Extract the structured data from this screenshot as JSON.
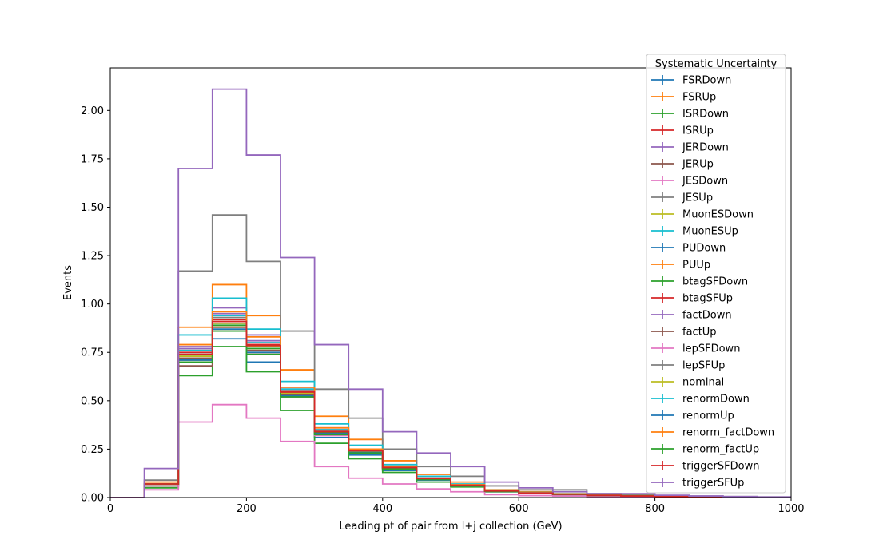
{
  "chart_data": {
    "type": "step-histogram",
    "xlabel": "Leading pt of pair from l+j collection (GeV)",
    "ylabel": "Events",
    "xlim": [
      0,
      1000
    ],
    "ylim": [
      0,
      2.22
    ],
    "x_ticks": [
      "0",
      "200",
      "400",
      "600",
      "800",
      "1000"
    ],
    "y_ticks": [
      "0.00",
      "0.25",
      "0.50",
      "0.75",
      "1.00",
      "1.25",
      "1.50",
      "1.75",
      "2.00"
    ],
    "x_tick_values": [
      0,
      200,
      400,
      600,
      800,
      1000
    ],
    "y_tick_values": [
      0,
      0.25,
      0.5,
      0.75,
      1.0,
      1.25,
      1.5,
      1.75,
      2.0
    ],
    "legend_title": "Systematic Uncertainty",
    "legend_position": "top-right",
    "bin_edges": [
      0,
      50,
      100,
      150,
      200,
      250,
      300,
      350,
      400,
      450,
      500,
      550,
      600,
      650,
      700,
      750,
      800,
      850,
      900,
      950,
      1000
    ],
    "series": [
      {
        "name": "FSRDown",
        "color": "#1f77b4",
        "values": [
          0,
          0.06,
          0.7,
          0.82,
          0.7,
          0.52,
          0.31,
          0.22,
          0.14,
          0.09,
          0.06,
          0.03,
          0.02,
          0.015,
          0.01,
          0.008,
          0.005,
          0.004,
          0.003,
          0.002
        ]
      },
      {
        "name": "FSRUp",
        "color": "#ff7f0e",
        "values": [
          0,
          0.08,
          0.88,
          1.1,
          0.94,
          0.66,
          0.42,
          0.3,
          0.19,
          0.12,
          0.08,
          0.04,
          0.03,
          0.02,
          0.015,
          0.01,
          0.007,
          0.005,
          0.003,
          0.002
        ]
      },
      {
        "name": "ISRDown",
        "color": "#2ca02c",
        "values": [
          0,
          0.05,
          0.63,
          0.78,
          0.65,
          0.45,
          0.28,
          0.2,
          0.13,
          0.08,
          0.055,
          0.03,
          0.02,
          0.015,
          0.01,
          0.007,
          0.005,
          0.003,
          0.002,
          0.001
        ]
      },
      {
        "name": "ISRUp",
        "color": "#d62728",
        "values": [
          0,
          0.07,
          0.76,
          0.92,
          0.79,
          0.55,
          0.34,
          0.24,
          0.16,
          0.1,
          0.065,
          0.035,
          0.025,
          0.018,
          0.012,
          0.009,
          0.006,
          0.004,
          0.003,
          0.002
        ]
      },
      {
        "name": "JERDown",
        "color": "#9467bd",
        "values": [
          0,
          0.07,
          0.78,
          0.98,
          0.84,
          0.57,
          0.36,
          0.25,
          0.16,
          0.1,
          0.065,
          0.035,
          0.025,
          0.018,
          0.012,
          0.009,
          0.006,
          0.004,
          0.003,
          0.002
        ]
      },
      {
        "name": "JERUp",
        "color": "#8c564b",
        "values": [
          0,
          0.06,
          0.68,
          0.86,
          0.75,
          0.53,
          0.33,
          0.23,
          0.15,
          0.095,
          0.06,
          0.033,
          0.022,
          0.016,
          0.011,
          0.008,
          0.005,
          0.004,
          0.003,
          0.002
        ]
      },
      {
        "name": "JESDown",
        "color": "#e377c2",
        "values": [
          0,
          0.04,
          0.39,
          0.48,
          0.41,
          0.29,
          0.16,
          0.1,
          0.07,
          0.045,
          0.03,
          0.015,
          0.01,
          0.008,
          0.005,
          0.004,
          0.003,
          0.002,
          0.001,
          0.001
        ]
      },
      {
        "name": "JESUp",
        "color": "#7f7f7f",
        "values": [
          0,
          0.09,
          1.17,
          1.46,
          1.22,
          0.86,
          0.56,
          0.41,
          0.25,
          0.16,
          0.11,
          0.06,
          0.04,
          0.04,
          0.02,
          0.015,
          0.01,
          0.007,
          0.005,
          0.003
        ]
      },
      {
        "name": "MuonESDown",
        "color": "#bcbd22",
        "values": [
          0,
          0.07,
          0.72,
          0.88,
          0.76,
          0.53,
          0.33,
          0.23,
          0.15,
          0.095,
          0.06,
          0.033,
          0.022,
          0.016,
          0.011,
          0.008,
          0.005,
          0.004,
          0.003,
          0.002
        ]
      },
      {
        "name": "MuonESUp",
        "color": "#17becf",
        "values": [
          0,
          0.07,
          0.84,
          1.03,
          0.87,
          0.6,
          0.38,
          0.27,
          0.17,
          0.11,
          0.07,
          0.038,
          0.026,
          0.019,
          0.013,
          0.009,
          0.006,
          0.004,
          0.003,
          0.002
        ]
      },
      {
        "name": "PUDown",
        "color": "#1f77b4",
        "values": [
          0,
          0.07,
          0.74,
          0.9,
          0.78,
          0.54,
          0.34,
          0.24,
          0.155,
          0.097,
          0.062,
          0.034,
          0.023,
          0.017,
          0.011,
          0.008,
          0.005,
          0.004,
          0.003,
          0.002
        ]
      },
      {
        "name": "PUUp",
        "color": "#ff7f0e",
        "values": [
          0,
          0.07,
          0.71,
          0.88,
          0.76,
          0.53,
          0.33,
          0.235,
          0.15,
          0.095,
          0.06,
          0.033,
          0.022,
          0.016,
          0.011,
          0.008,
          0.005,
          0.004,
          0.003,
          0.002
        ]
      },
      {
        "name": "btagSFDown",
        "color": "#2ca02c",
        "values": [
          0,
          0.07,
          0.73,
          0.89,
          0.77,
          0.535,
          0.335,
          0.237,
          0.152,
          0.096,
          0.061,
          0.033,
          0.022,
          0.016,
          0.011,
          0.008,
          0.005,
          0.004,
          0.003,
          0.002
        ]
      },
      {
        "name": "btagSFUp",
        "color": "#d62728",
        "values": [
          0,
          0.07,
          0.75,
          0.91,
          0.79,
          0.55,
          0.345,
          0.245,
          0.158,
          0.099,
          0.064,
          0.035,
          0.024,
          0.017,
          0.012,
          0.008,
          0.006,
          0.004,
          0.003,
          0.002
        ]
      },
      {
        "name": "factDown",
        "color": "#9467bd",
        "values": [
          0,
          0.07,
          0.77,
          0.95,
          0.81,
          0.56,
          0.35,
          0.25,
          0.16,
          0.1,
          0.065,
          0.035,
          0.024,
          0.017,
          0.012,
          0.008,
          0.006,
          0.004,
          0.003,
          0.002
        ]
      },
      {
        "name": "factUp",
        "color": "#8c564b",
        "values": [
          0,
          0.07,
          0.72,
          0.88,
          0.76,
          0.53,
          0.33,
          0.235,
          0.15,
          0.095,
          0.06,
          0.033,
          0.022,
          0.016,
          0.011,
          0.008,
          0.005,
          0.004,
          0.003,
          0.002
        ]
      },
      {
        "name": "lepSFDown",
        "color": "#e377c2",
        "values": [
          0,
          0.07,
          0.7,
          0.86,
          0.74,
          0.52,
          0.32,
          0.23,
          0.148,
          0.093,
          0.059,
          0.032,
          0.022,
          0.016,
          0.011,
          0.008,
          0.005,
          0.004,
          0.003,
          0.002
        ]
      },
      {
        "name": "lepSFUp",
        "color": "#7f7f7f",
        "values": [
          0,
          0.07,
          0.76,
          0.93,
          0.8,
          0.56,
          0.35,
          0.245,
          0.158,
          0.099,
          0.064,
          0.035,
          0.024,
          0.017,
          0.012,
          0.008,
          0.006,
          0.004,
          0.003,
          0.002
        ]
      },
      {
        "name": "nominal",
        "color": "#bcbd22",
        "values": [
          0,
          0.07,
          0.73,
          0.9,
          0.78,
          0.54,
          0.34,
          0.24,
          0.153,
          0.097,
          0.062,
          0.034,
          0.023,
          0.017,
          0.011,
          0.008,
          0.005,
          0.004,
          0.003,
          0.002
        ]
      },
      {
        "name": "renormDown",
        "color": "#17becf",
        "values": [
          0,
          0.07,
          0.76,
          0.94,
          0.8,
          0.56,
          0.35,
          0.245,
          0.158,
          0.099,
          0.064,
          0.035,
          0.024,
          0.017,
          0.012,
          0.008,
          0.006,
          0.004,
          0.003,
          0.002
        ]
      },
      {
        "name": "renormUp",
        "color": "#1f77b4",
        "values": [
          0,
          0.07,
          0.71,
          0.87,
          0.75,
          0.525,
          0.33,
          0.233,
          0.15,
          0.094,
          0.06,
          0.033,
          0.022,
          0.016,
          0.011,
          0.008,
          0.005,
          0.004,
          0.003,
          0.002
        ]
      },
      {
        "name": "renorm_factDown",
        "color": "#ff7f0e",
        "values": [
          0,
          0.07,
          0.79,
          0.96,
          0.83,
          0.57,
          0.36,
          0.25,
          0.162,
          0.1,
          0.066,
          0.036,
          0.024,
          0.018,
          0.012,
          0.009,
          0.006,
          0.004,
          0.003,
          0.002
        ]
      },
      {
        "name": "renorm_factUp",
        "color": "#2ca02c",
        "values": [
          0,
          0.07,
          0.7,
          0.86,
          0.74,
          0.52,
          0.325,
          0.23,
          0.148,
          0.093,
          0.059,
          0.032,
          0.022,
          0.016,
          0.011,
          0.008,
          0.005,
          0.004,
          0.003,
          0.002
        ]
      },
      {
        "name": "triggerSFDown",
        "color": "#d62728",
        "values": [
          0,
          0.07,
          0.74,
          0.91,
          0.785,
          0.545,
          0.34,
          0.242,
          0.155,
          0.098,
          0.063,
          0.034,
          0.023,
          0.017,
          0.011,
          0.008,
          0.005,
          0.004,
          0.003,
          0.002
        ]
      },
      {
        "name": "triggerSFUp",
        "color": "#9467bd",
        "values": [
          0,
          0.15,
          1.7,
          2.11,
          1.77,
          1.24,
          0.79,
          0.56,
          0.34,
          0.23,
          0.16,
          0.08,
          0.05,
          0.03,
          0.02,
          0.02,
          0.012,
          0.008,
          0.005,
          0.003
        ]
      }
    ]
  }
}
